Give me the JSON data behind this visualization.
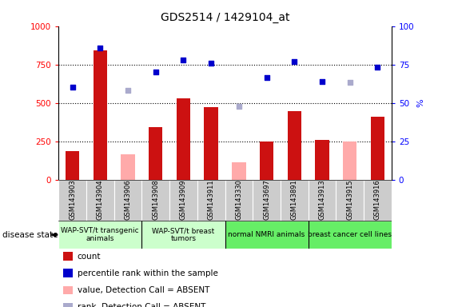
{
  "title": "GDS2514 / 1429104_at",
  "sample_labels": [
    "GSM143903",
    "GSM143904",
    "GSM143906",
    "GSM143908",
    "GSM143909",
    "GSM143911",
    "GSM143330",
    "GSM143697",
    "GSM143891",
    "GSM143913",
    "GSM143915",
    "GSM143916"
  ],
  "count_values": [
    185,
    840,
    null,
    340,
    530,
    470,
    null,
    248,
    445,
    260,
    null,
    410
  ],
  "count_absent_values": [
    null,
    null,
    165,
    null,
    null,
    null,
    115,
    null,
    null,
    null,
    250,
    null
  ],
  "rank_values": [
    60,
    86,
    null,
    70,
    78,
    76,
    null,
    66.5,
    77,
    64,
    null,
    73
  ],
  "rank_absent_values": [
    null,
    null,
    58,
    null,
    null,
    null,
    47.5,
    null,
    null,
    null,
    63.5,
    null
  ],
  "groups": [
    {
      "label": "WAP-SVT/t transgenic\nanimals",
      "start": 0,
      "end": 3,
      "color": "#ccffcc"
    },
    {
      "label": "WAP-SVT/t breast\ntumors",
      "start": 3,
      "end": 6,
      "color": "#ccffcc"
    },
    {
      "label": "normal NMRI animals",
      "start": 6,
      "end": 9,
      "color": "#66ee66"
    },
    {
      "label": "breast cancer cell lines",
      "start": 9,
      "end": 12,
      "color": "#66ee66"
    }
  ],
  "ylim_left": [
    0,
    1000
  ],
  "ylim_right": [
    0,
    100
  ],
  "yticks_left": [
    0,
    250,
    500,
    750,
    1000
  ],
  "yticks_right": [
    0,
    25,
    50,
    75,
    100
  ],
  "bar_width": 0.5,
  "count_color": "#cc1111",
  "count_absent_color": "#ffaaaa",
  "rank_color": "#0000cc",
  "rank_absent_color": "#aaaacc",
  "legend_items": [
    {
      "color": "#cc1111",
      "label": "count"
    },
    {
      "color": "#0000cc",
      "label": "percentile rank within the sample"
    },
    {
      "color": "#ffaaaa",
      "label": "value, Detection Call = ABSENT"
    },
    {
      "color": "#aaaacc",
      "label": "rank, Detection Call = ABSENT"
    }
  ],
  "disease_state_label": "disease state",
  "right_axis_label": "%"
}
